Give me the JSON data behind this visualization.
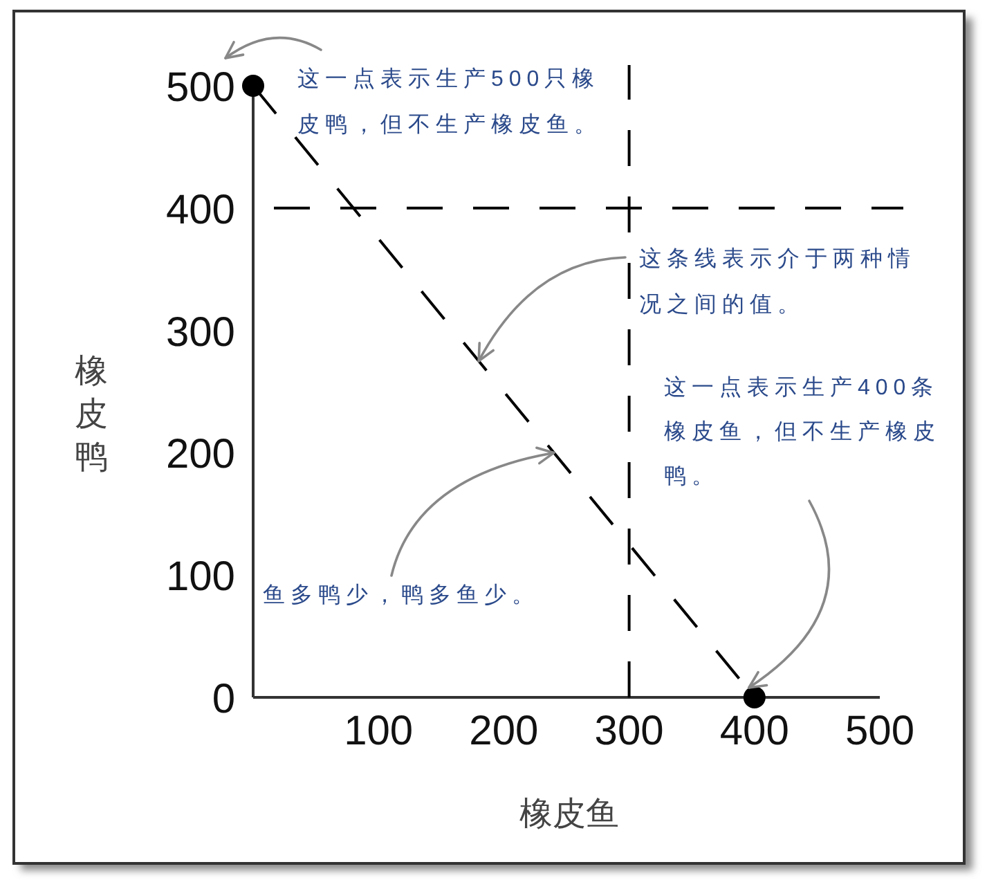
{
  "chart_data": {
    "type": "line",
    "xlabel": "橡皮鱼",
    "ylabel": "橡皮鸭",
    "x": [
      0,
      400
    ],
    "series": [
      {
        "color": "#000000",
        "values": [
          500,
          0
        ]
      }
    ],
    "marker": "circle",
    "line_style": "dashed",
    "xlim": [
      0,
      500
    ],
    "ylim": [
      0,
      500
    ],
    "xticks": [
      100,
      200,
      300,
      400,
      500
    ],
    "yticks": [
      0,
      100,
      200,
      300,
      400,
      500
    ],
    "ref_lines": [
      {
        "axis": "x",
        "value": 300,
        "color": "#000000",
        "line_style": "dashed"
      },
      {
        "axis": "y",
        "value": 400,
        "color": "#000000",
        "line_style": "dashed"
      }
    ],
    "annotations": [
      {
        "text": "这一点表示生产500只橡皮鸭，但不生产橡皮鱼。",
        "x": 0,
        "y": 500
      },
      {
        "text": "这条线表示介于两种情况之间的值。",
        "x": 180,
        "y": 275
      },
      {
        "text": "这一点表示生产400条橡皮鱼，但不生产橡皮鸭。",
        "x": 400,
        "y": 0
      },
      {
        "text": "鱼多鸭少，鸭多鱼少。",
        "x": 240,
        "y": 200
      }
    ]
  }
}
